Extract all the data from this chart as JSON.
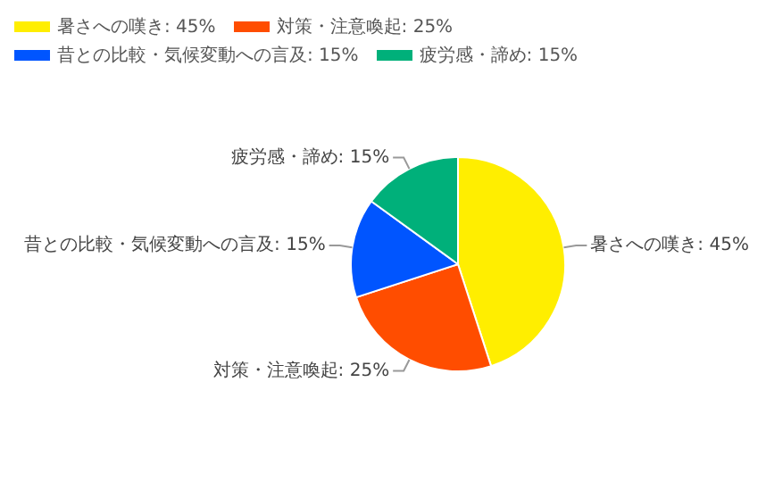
{
  "chart_data": {
    "type": "pie",
    "categories": [
      "暑さへの嘆き: 45%",
      "対策・注意喚起: 25%",
      "昔との比較・気候変動への言及: 15%",
      "疲労感・諦め: 15%"
    ],
    "values": [
      45,
      25,
      15,
      15
    ],
    "colors": [
      "#ffee00",
      "#ff4d00",
      "#0055ff",
      "#00b07a"
    ],
    "legend": "top"
  }
}
